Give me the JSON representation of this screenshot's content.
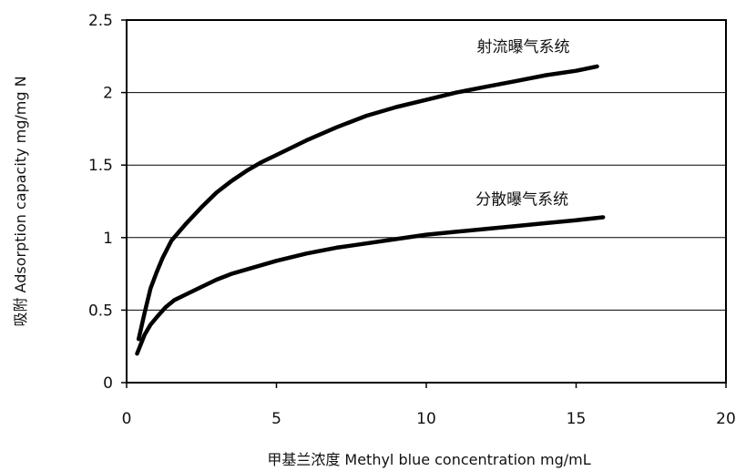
{
  "chart_data": {
    "type": "line",
    "xlabel": "甲基兰浓度 Methyl blue concentration  mg/mL",
    "ylabel": "吸附   Adsorption capacity  mg/mg N",
    "xlim": [
      0,
      20
    ],
    "ylim": [
      0,
      2.5
    ],
    "x_ticks": [
      "0",
      "5",
      "10",
      "15",
      "20"
    ],
    "y_ticks": [
      "0",
      "0.5",
      "1",
      "1.5",
      "2",
      "2.5"
    ],
    "grid": "horizontal",
    "legend": "none",
    "series": [
      {
        "name": "射流曝气系统",
        "x": [
          0.4,
          0.6,
          0.8,
          1.0,
          1.2,
          1.5,
          2.0,
          2.5,
          3.0,
          3.5,
          4.0,
          4.5,
          5.0,
          6.0,
          7.0,
          8.0,
          9.0,
          10.0,
          11.0,
          12.0,
          13.0,
          14.0,
          15.0,
          15.7
        ],
        "values": [
          0.3,
          0.48,
          0.65,
          0.76,
          0.86,
          0.98,
          1.1,
          1.21,
          1.31,
          1.39,
          1.46,
          1.52,
          1.57,
          1.67,
          1.76,
          1.84,
          1.9,
          1.95,
          2.0,
          2.04,
          2.08,
          2.12,
          2.15,
          2.18
        ],
        "color": "#000000"
      },
      {
        "name": "分散曝气系统",
        "x": [
          0.35,
          0.6,
          0.8,
          1.0,
          1.3,
          1.6,
          2.0,
          2.5,
          3.0,
          3.5,
          4.0,
          5.0,
          6.0,
          7.0,
          8.0,
          9.0,
          10.0,
          11.0,
          12.0,
          13.0,
          14.0,
          15.0,
          15.9
        ],
        "values": [
          0.2,
          0.33,
          0.4,
          0.45,
          0.52,
          0.57,
          0.61,
          0.66,
          0.71,
          0.75,
          0.78,
          0.84,
          0.89,
          0.93,
          0.96,
          0.99,
          1.02,
          1.04,
          1.06,
          1.08,
          1.1,
          1.12,
          1.14
        ],
        "color": "#000000"
      }
    ]
  }
}
